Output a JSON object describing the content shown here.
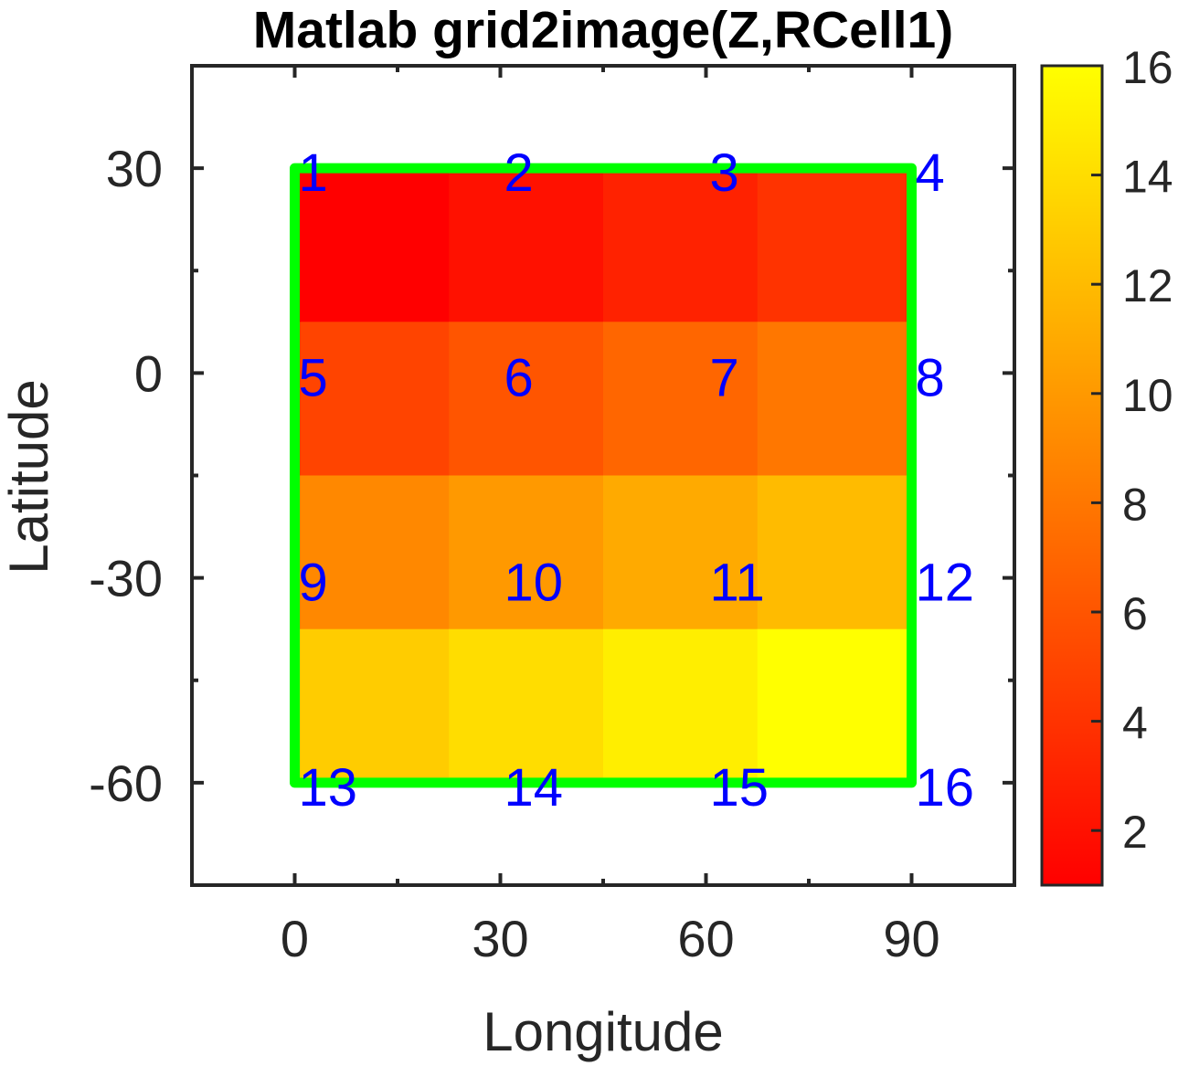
{
  "chart_data": {
    "type": "heatmap",
    "title": "Matlab grid2image(Z,RCell1)",
    "xlabel": "Longitude",
    "ylabel": "Latitude",
    "xlim": [
      -15,
      105
    ],
    "ylim": [
      -75,
      45
    ],
    "x_ticks": [
      0,
      30,
      60,
      90
    ],
    "y_ticks": [
      30,
      0,
      -30,
      -60
    ],
    "x_tick_labels": [
      "0",
      "30",
      "60",
      "90"
    ],
    "y_tick_labels": [
      "30",
      "0",
      "-30",
      "-60"
    ],
    "image_x_range": [
      0,
      90
    ],
    "image_y_range": [
      -60,
      30
    ],
    "z": [
      [
        1,
        2,
        3,
        4
      ],
      [
        5,
        6,
        7,
        8
      ],
      [
        9,
        10,
        11,
        12
      ],
      [
        13,
        14,
        15,
        16
      ]
    ],
    "colorbar": {
      "range": [
        1,
        16
      ],
      "ticks": [
        2,
        4,
        6,
        8,
        10,
        12,
        14,
        16
      ],
      "tick_labels": [
        "2",
        "4",
        "6",
        "8",
        "10",
        "12",
        "14",
        "16"
      ],
      "colormap": "autumn"
    },
    "cell_labels": [
      {
        "text": "1",
        "x": 0,
        "y": 30
      },
      {
        "text": "2",
        "x": 30,
        "y": 30
      },
      {
        "text": "3",
        "x": 60,
        "y": 30
      },
      {
        "text": "4",
        "x": 90,
        "y": 30
      },
      {
        "text": "5",
        "x": 0,
        "y": 0
      },
      {
        "text": "6",
        "x": 30,
        "y": 0
      },
      {
        "text": "7",
        "x": 60,
        "y": 0
      },
      {
        "text": "8",
        "x": 90,
        "y": 0
      },
      {
        "text": "9",
        "x": 0,
        "y": -30
      },
      {
        "text": "10",
        "x": 30,
        "y": -30
      },
      {
        "text": "11",
        "x": 60,
        "y": -30
      },
      {
        "text": "12",
        "x": 90,
        "y": -30
      },
      {
        "text": "13",
        "x": 0,
        "y": -60
      },
      {
        "text": "14",
        "x": 30,
        "y": -60
      },
      {
        "text": "15",
        "x": 60,
        "y": -60
      },
      {
        "text": "16",
        "x": 90,
        "y": -60
      }
    ],
    "outline": {
      "x": [
        0,
        90,
        90,
        0,
        0
      ],
      "y": [
        30,
        30,
        -60,
        -60,
        30
      ]
    },
    "grid": false,
    "box": true,
    "colors": {
      "outline": "#00ff00",
      "cell_label": "#0000ff",
      "axes": "#262626"
    }
  }
}
